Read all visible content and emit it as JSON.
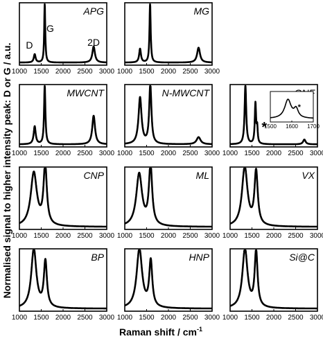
{
  "chart_data": {
    "type": "line",
    "layout": "4x3 grid of Raman spectra",
    "xlabel": "Raman shift  / cm",
    "xlabel_sup": "-1",
    "ylabel": "Normalised signal to higher intensity peak: D or G / a.u.",
    "xlim": [
      1000,
      3000
    ],
    "ylim": [
      0,
      1
    ],
    "xticks": [
      "1000",
      "1500",
      "2000",
      "2500",
      "3000"
    ],
    "grid": false,
    "peak_labels": {
      "D": "D",
      "G": "G",
      "2D": "2D"
    },
    "panels": [
      {
        "name": "APG",
        "peaks": [
          {
            "x": 1350,
            "h": 0.14,
            "w": 25
          },
          {
            "x": 1580,
            "h": 1.0,
            "w": 14
          },
          {
            "x": 2700,
            "h": 0.27,
            "w": 35
          }
        ],
        "baseline": 0.02
      },
      {
        "name": "MG",
        "peaks": [
          {
            "x": 1350,
            "h": 0.23,
            "w": 25
          },
          {
            "x": 1580,
            "h": 1.0,
            "w": 16
          },
          {
            "x": 2690,
            "h": 0.25,
            "w": 40
          }
        ],
        "baseline": 0.02
      },
      {
        "name": "",
        "peaks": [],
        "baseline": 0
      },
      {
        "name": "MWCNT",
        "peaks": [
          {
            "x": 1350,
            "h": 0.3,
            "w": 28
          },
          {
            "x": 1580,
            "h": 1.0,
            "w": 18
          },
          {
            "x": 2700,
            "h": 0.48,
            "w": 38
          }
        ],
        "baseline": 0.02
      },
      {
        "name": "N-MWCNT",
        "peaks": [
          {
            "x": 1350,
            "h": 0.78,
            "w": 42
          },
          {
            "x": 1585,
            "h": 1.0,
            "w": 30
          },
          {
            "x": 2690,
            "h": 0.12,
            "w": 55
          }
        ],
        "baseline": 0.02
      },
      {
        "name": "GNF",
        "peaks": [
          {
            "x": 1350,
            "h": 1.0,
            "w": 22
          },
          {
            "x": 1580,
            "h": 0.68,
            "w": 18
          },
          {
            "x": 1620,
            "h": 0.25,
            "w": 14
          },
          {
            "x": 2700,
            "h": 0.08,
            "w": 35
          }
        ],
        "baseline": 0.02,
        "annotation": "*",
        "inset": {
          "xlim": [
            1500,
            1700
          ],
          "xticks": [
            "1500",
            "1600",
            "1700"
          ],
          "peaks": [
            {
              "x": 1582,
              "h": 0.75,
              "w": 18
            },
            {
              "x": 1620,
              "h": 0.35,
              "w": 12
            }
          ],
          "annotation": "*"
        }
      },
      {
        "name": "CNP",
        "peaks": [
          {
            "x": 1330,
            "h": 0.9,
            "w": 85
          },
          {
            "x": 1590,
            "h": 1.0,
            "w": 45
          }
        ],
        "baseline": 0.02
      },
      {
        "name": "ML",
        "peaks": [
          {
            "x": 1330,
            "h": 0.88,
            "w": 80
          },
          {
            "x": 1590,
            "h": 1.0,
            "w": 45
          }
        ],
        "baseline": 0.02
      },
      {
        "name": "VX",
        "peaks": [
          {
            "x": 1335,
            "h": 1.0,
            "w": 75
          },
          {
            "x": 1595,
            "h": 0.9,
            "w": 45
          }
        ],
        "baseline": 0.02
      },
      {
        "name": "BP",
        "peaks": [
          {
            "x": 1330,
            "h": 1.0,
            "w": 70
          },
          {
            "x": 1595,
            "h": 0.77,
            "w": 42
          }
        ],
        "baseline": 0.02
      },
      {
        "name": "HNP",
        "peaks": [
          {
            "x": 1335,
            "h": 1.0,
            "w": 75
          },
          {
            "x": 1595,
            "h": 0.77,
            "w": 42
          }
        ],
        "baseline": 0.02
      },
      {
        "name": "Si@C",
        "peaks": [
          {
            "x": 1340,
            "h": 1.0,
            "w": 70
          },
          {
            "x": 1595,
            "h": 0.93,
            "w": 40
          }
        ],
        "baseline": 0.02
      }
    ]
  }
}
